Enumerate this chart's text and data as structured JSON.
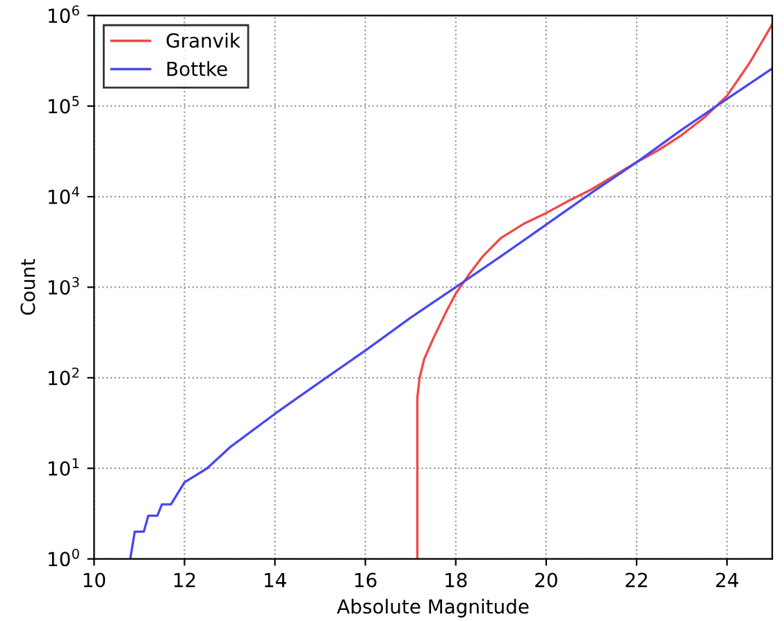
{
  "chart_data": {
    "type": "line",
    "xlabel": "Absolute Magnitude",
    "ylabel": "Count",
    "log": "y",
    "xlim": [
      10,
      25
    ],
    "ylim": [
      1,
      1000000
    ],
    "xticks": [
      10,
      12,
      14,
      16,
      18,
      20,
      22,
      24
    ],
    "yticks": [
      {
        "value": 1,
        "label": "10$^{0}$"
      },
      {
        "value": 10,
        "label": "10$^{1}$"
      },
      {
        "value": 100,
        "label": "10$^{2}$"
      },
      {
        "value": 1000,
        "label": "10$^{3}$"
      },
      {
        "value": 10000,
        "label": "10$^{4}$"
      },
      {
        "value": 100000,
        "label": "10$^{5}$"
      },
      {
        "value": 1000000,
        "label": "10$^{6}$"
      }
    ],
    "grid": true,
    "legend": "top left",
    "line_style": "solid",
    "series": [
      {
        "name": "Granvik",
        "color": "#f04848",
        "x": [
          17.15,
          17.15,
          17.2,
          17.3,
          17.5,
          17.8,
          18,
          18.3,
          18.6,
          19,
          19.5,
          20,
          20.5,
          21,
          21.5,
          22,
          22.5,
          23,
          23.5,
          24,
          24.5,
          25
        ],
        "values": [
          1,
          60,
          100,
          160,
          270,
          550,
          850,
          1400,
          2200,
          3500,
          5000,
          6600,
          9000,
          12000,
          17000,
          24000,
          33000,
          48000,
          75000,
          130000,
          300000,
          800000
        ]
      },
      {
        "name": "Bottke",
        "color": "#4848f0",
        "x": [
          10.8,
          10.9,
          11.1,
          11.2,
          11.4,
          11.5,
          11.7,
          12,
          12.5,
          13,
          14,
          15,
          16,
          17,
          18,
          19,
          20,
          21,
          22,
          23,
          24,
          25
        ],
        "values": [
          1,
          2,
          2,
          3,
          3,
          4,
          4,
          7,
          10,
          17,
          40,
          90,
          200,
          460,
          1000,
          2200,
          4900,
          11000,
          24000,
          55000,
          120000,
          260000
        ]
      }
    ]
  }
}
